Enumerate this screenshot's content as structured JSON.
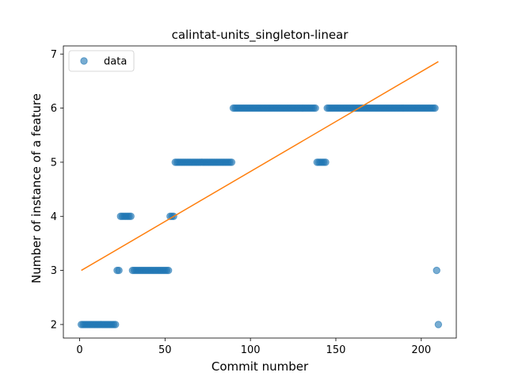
{
  "chart_data": {
    "type": "scatter",
    "title": "calintat-units_singleton-linear",
    "xlabel": "Commit number",
    "ylabel": "Number of instance of a feature",
    "xlim": [
      -9.5,
      220.5
    ],
    "ylim": [
      1.75,
      7.15
    ],
    "xticks": [
      0,
      50,
      100,
      150,
      200
    ],
    "yticks": [
      2,
      3,
      4,
      5,
      6,
      7
    ],
    "grid": false,
    "legend": {
      "placement": "top-left",
      "entries": [
        "data"
      ]
    },
    "colors": {
      "data": "#1f77b4",
      "fit": "#ff7f0e"
    },
    "series": [
      {
        "name": "data",
        "kind": "scatter",
        "segments": [
          {
            "y": 2,
            "x_from": 1,
            "x_to": 21
          },
          {
            "y": 3,
            "x_from": 22,
            "x_to": 23
          },
          {
            "y": 4,
            "x_from": 24,
            "x_to": 30
          },
          {
            "y": 3,
            "x_from": 31,
            "x_to": 52
          },
          {
            "y": 4,
            "x_from": 53,
            "x_to": 55
          },
          {
            "y": 5,
            "x_from": 56,
            "x_to": 89
          },
          {
            "y": 6,
            "x_from": 90,
            "x_to": 138
          },
          {
            "y": 5,
            "x_from": 139,
            "x_to": 144
          },
          {
            "y": 6,
            "x_from": 145,
            "x_to": 208
          },
          {
            "y": 3,
            "x_from": 209,
            "x_to": 209
          },
          {
            "y": 2,
            "x_from": 210,
            "x_to": 210
          }
        ]
      },
      {
        "kind": "line",
        "x": [
          1,
          210
        ],
        "y": [
          3.0,
          6.86
        ]
      }
    ]
  }
}
